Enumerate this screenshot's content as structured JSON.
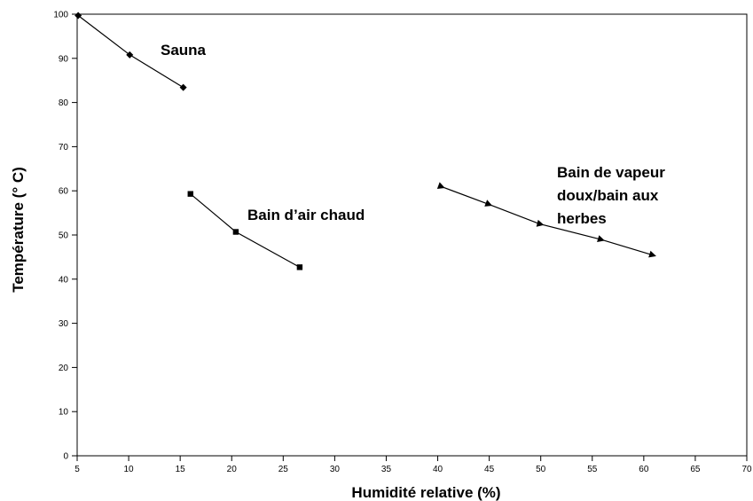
{
  "chart_data": {
    "type": "line",
    "xlabel": "Humidité relative (%)",
    "ylabel": "Température (° C)",
    "xlim": [
      5,
      70
    ],
    "ylim": [
      0,
      100
    ],
    "x_ticks": [
      "5",
      "10",
      "15",
      "20",
      "25",
      "30",
      "35",
      "40",
      "45",
      "50",
      "55",
      "60",
      "65",
      "70"
    ],
    "y_ticks": [
      "0",
      "10",
      "20",
      "30",
      "40",
      "50",
      "60",
      "70",
      "80",
      "90",
      "100"
    ],
    "grid": false,
    "series": [
      {
        "name": "Sauna",
        "marker": "diamond",
        "x": [
          5.1,
          10.1,
          15.3
        ],
        "y": [
          99.7,
          90.8,
          83.4
        ]
      },
      {
        "name": "Bain d’air chaud",
        "marker": "square",
        "x": [
          16,
          20.4,
          26.6
        ],
        "y": [
          59.3,
          50.7,
          42.7
        ]
      },
      {
        "name": "Bain de vapeur doux/bain aux herbes",
        "label_lines": [
          "Bain de vapeur",
          "doux/bain aux",
          "herbes"
        ],
        "marker": "triangle",
        "x": [
          40.3,
          44.9,
          49.9,
          55.8,
          60.8
        ],
        "y": [
          61,
          57,
          52.5,
          49,
          45.5
        ]
      }
    ]
  }
}
